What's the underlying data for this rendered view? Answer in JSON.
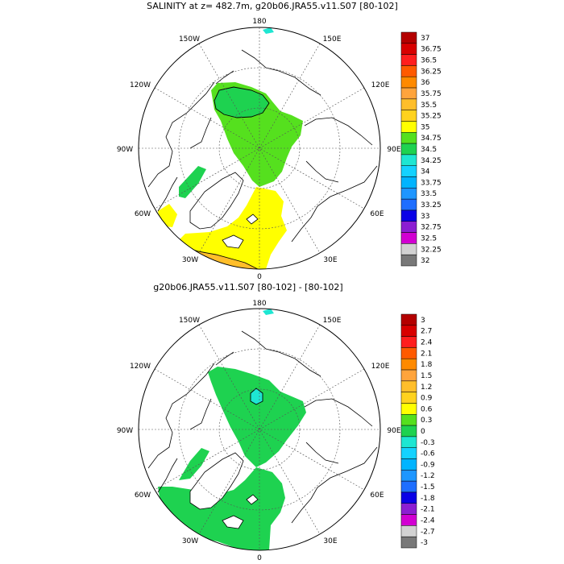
{
  "panels": [
    {
      "title": "SALINITY at z= 482.7m, g20b06.JRA55.v11.S07 [80-102]",
      "lon_labels": {
        "top": "180",
        "upper_left": "150W",
        "upper_right": "150E",
        "left_upper": "120W",
        "right_upper": "120E",
        "left": "90W",
        "right": "90E",
        "left_lower": "60W",
        "right_lower": "60E",
        "lower_left": "30W",
        "lower_right": "30E",
        "bottom": "0"
      },
      "colorbar": {
        "labels": [
          "37",
          "36.75",
          "36.5",
          "36.25",
          "36",
          "35.75",
          "35.5",
          "35.25",
          "35",
          "34.75",
          "34.5",
          "34.25",
          "34",
          "33.75",
          "33.5",
          "33.25",
          "33",
          "32.75",
          "32.5",
          "32.25",
          "32"
        ],
        "colors": [
          "#b40000",
          "#d80000",
          "#ff1e1e",
          "#ff5a00",
          "#ff8a00",
          "#ffa43c",
          "#ffbe2a",
          "#ffd21e",
          "#ffff00",
          "#55e01e",
          "#1ed250",
          "#1ee6d2",
          "#14d2ff",
          "#00b4ff",
          "#1e96ff",
          "#1e6eff",
          "#0a00e6",
          "#8c1ed2",
          "#d200d2",
          "#d2d2d2",
          "#787878"
        ]
      },
      "regions": [
        {
          "name": "central-arctic-green",
          "color": "#55e01e"
        },
        {
          "name": "canada-basin-teal",
          "color": "#1ed250"
        },
        {
          "name": "atlantic-yellow",
          "color": "#ffff00"
        },
        {
          "name": "labrador-green",
          "color": "#1ed250"
        },
        {
          "name": "irminger-orange",
          "color": "#ffbe2a"
        }
      ]
    },
    {
      "title": "g20b06.JRA55.v11.S07 [80-102] -  [80-102]",
      "lon_labels": {
        "top": "180",
        "upper_left": "150W",
        "upper_right": "150E",
        "left_upper": "120W",
        "right_upper": "120E",
        "left": "90W",
        "right": "90E",
        "left_lower": "60W",
        "right_lower": "60E",
        "lower_left": "30W",
        "lower_right": "30E",
        "bottom": "0"
      },
      "colorbar": {
        "labels": [
          "3",
          "2.7",
          "2.4",
          "2.1",
          "1.8",
          "1.5",
          "1.2",
          "0.9",
          "0.6",
          "0.3",
          "0",
          "-0.3",
          "-0.6",
          "-0.9",
          "-1.2",
          "-1.5",
          "-1.8",
          "-2.1",
          "-2.4",
          "-2.7",
          "-3"
        ],
        "colors": [
          "#b40000",
          "#d80000",
          "#ff1e1e",
          "#ff5a00",
          "#ff8a00",
          "#ffa43c",
          "#ffbe2a",
          "#ffd21e",
          "#ffff00",
          "#55e01e",
          "#1ed250",
          "#1ee6d2",
          "#14d2ff",
          "#00b4ff",
          "#1e96ff",
          "#1e6eff",
          "#0a00e6",
          "#8c1ed2",
          "#d200d2",
          "#d2d2d2",
          "#787878"
        ]
      },
      "regions": [
        {
          "name": "central-arctic-green",
          "color": "#1ed250"
        },
        {
          "name": "makarov-teal-patch",
          "color": "#1ee6d2"
        },
        {
          "name": "atlantic-green",
          "color": "#1ed250"
        },
        {
          "name": "labrador-green",
          "color": "#1ed250"
        }
      ]
    }
  ]
}
